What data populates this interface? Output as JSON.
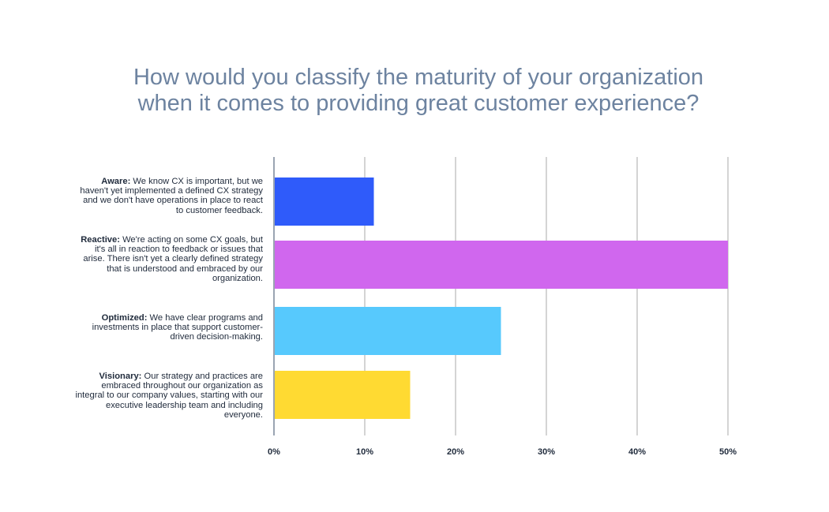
{
  "chart_data": {
    "type": "bar",
    "orientation": "horizontal",
    "title": "How would you classify the maturity of your organization when it comes to providing great customer experience?",
    "title_lines": [
      "How would you classify the maturity of your organization",
      "when it comes to providing great customer experience?"
    ],
    "categories": [
      {
        "bold": "Aware:",
        "text": " We know CX is important, but we haven't yet implemented a defined CX strategy and we don't have operations in place to react to customer feedback."
      },
      {
        "bold": "Reactive:",
        "text": " We're acting on some CX goals, but it's all in reaction to feedback or issues that arise.  There isn't yet a clearly defined strategy that is understood and embraced by our organization."
      },
      {
        "bold": "Optimized:",
        "text": " We have clear programs and investments in place that support customer-driven decision-making."
      },
      {
        "bold": "Visionary:",
        "text": " Our strategy and practices are embraced throughout our organization as integral to our company values, starting with our executive leadership team and including everyone."
      }
    ],
    "values": [
      11,
      50,
      25,
      15
    ],
    "colors": [
      "#2f5bfa",
      "#d067ee",
      "#57c9fd",
      "#ffda32"
    ],
    "xlim": [
      0,
      50
    ],
    "ticks": [
      0,
      10,
      20,
      30,
      40,
      50
    ],
    "tick_labels": [
      "0%",
      "10%",
      "20%",
      "30%",
      "40%",
      "50%"
    ],
    "grid": true,
    "grid_color": "#d4d4d4",
    "axis_color": "#9aa4b2",
    "title_color": "#6d83a0",
    "label_color": "#1f2a3b"
  }
}
